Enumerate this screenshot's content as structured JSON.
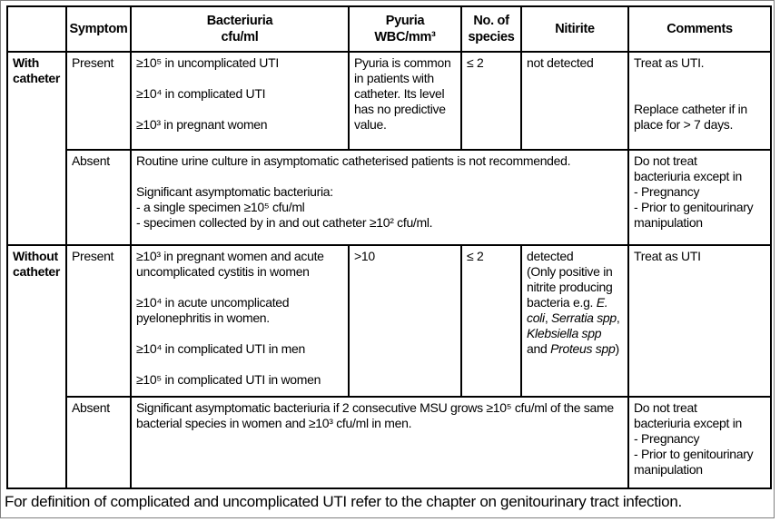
{
  "colors": {
    "border": "#000000",
    "frame": "#7f7f7f",
    "text": "#000000",
    "background": "#ffffff"
  },
  "table": {
    "headers": {
      "corner": "",
      "symptom": "Symptom",
      "bacteriuria": "Bacteriuria\ncfu/ml",
      "pyuria": "Pyuria\nWBC/mm³",
      "species": "No. of\nspecies",
      "nitrite": "Nitirite",
      "comments": "Comments"
    },
    "with_catheter": {
      "group_label": "With catheter",
      "present": {
        "symptom": "Present",
        "bacteriuria": "≥10⁵ in uncomplicated UTI\n\n≥10⁴ in complicated UTI\n\n≥10³ in pregnant women",
        "pyuria": "Pyuria is common in patients with catheter. Its level has no predictive value.",
        "species": "≤ 2",
        "nitrite": "not detected",
        "comments": "Treat as UTI.\n\n\nReplace catheter if in place for > 7 days."
      },
      "absent": {
        "symptom": "Absent",
        "findings": "Routine urine culture in asymptomatic catheterised patients is not recommended.\n\nSignificant asymptomatic bacteriuria:\n- a single specimen ≥10⁵ cfu/ml\n- specimen collected by in and out catheter ≥10² cfu/ml.",
        "comments": "Do not treat\nbacteriuria except in\n- Pregnancy\n- Prior to genitourinary\nmanipulation"
      }
    },
    "without_catheter": {
      "group_label": "Without catheter",
      "present": {
        "symptom": "Present",
        "bacteriuria": "≥10³ in pregnant women and acute uncomplicated cystitis in women\n\n≥10⁴ in acute uncomplicated pyelonephritis in women.\n\n≥10⁴ in complicated UTI in men\n\n≥10⁵ in complicated UTI in women",
        "pyuria": ">10",
        "species": "≤ 2",
        "nitrite_segments": [
          {
            "t": "detected\n(Only positive in nitrite producing bacteria e.g. "
          },
          {
            "t": "E. coli",
            "i": true
          },
          {
            "t": ", "
          },
          {
            "t": "Serratia spp",
            "i": true
          },
          {
            "t": ", "
          },
          {
            "t": "Klebsiella spp",
            "i": true
          },
          {
            "t": " and "
          },
          {
            "t": "Proteus spp",
            "i": true
          },
          {
            "t": ")"
          }
        ],
        "comments": "Treat as UTI"
      },
      "absent": {
        "symptom": "Absent",
        "findings": "Significant asymptomatic bacteriuria if 2 consecutive MSU grows ≥10⁵ cfu/ml of the same bacterial species in women and ≥10³ cfu/ml in men.",
        "comments": "Do not treat\nbacteriuria except in\n- Pregnancy\n- Prior to genitourinary\nmanipulation"
      }
    }
  },
  "page": {
    "footer_note": "For definition of complicated and uncomplicated UTI refer to the chapter on genitourinary tract infection."
  }
}
